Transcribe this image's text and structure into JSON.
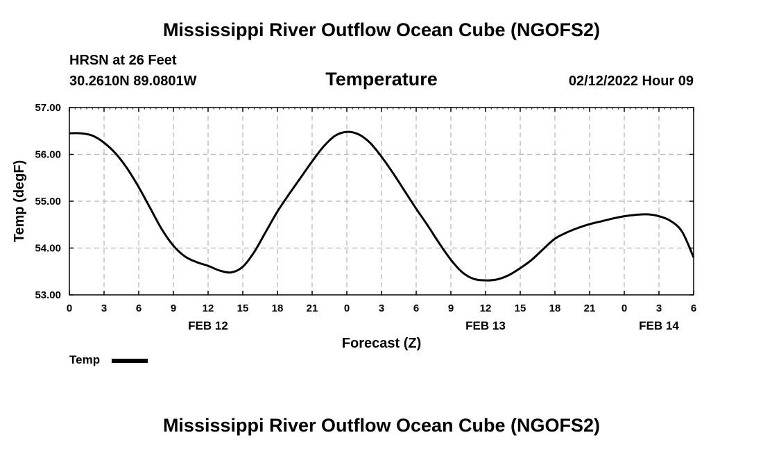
{
  "header": {
    "main_title": "Mississippi River Outflow Ocean Cube (NGOFS2)",
    "station": "HRSN at 26 Feet",
    "coords": "30.2610N  89.0801W",
    "datetime": "02/12/2022 Hour 09"
  },
  "footer": {
    "title": "Mississippi River Outflow Ocean Cube (NGOFS2)"
  },
  "chart_data": {
    "type": "line",
    "title": "Temperature",
    "xlabel": "Forecast (Z)",
    "ylabel": "Temp (degF)",
    "xlim": [
      0,
      54
    ],
    "ylim": [
      53,
      57
    ],
    "y_ticks": [
      "53.00",
      "54.00",
      "55.00",
      "56.00",
      "57.00"
    ],
    "y_tick_values": [
      53,
      54,
      55,
      56,
      57
    ],
    "x_ticks": [
      "0",
      "3",
      "6",
      "9",
      "12",
      "15",
      "18",
      "21",
      "0",
      "3",
      "6",
      "9",
      "12",
      "15",
      "18",
      "21",
      "0",
      "3",
      "6"
    ],
    "x_tick_values": [
      0,
      3,
      6,
      9,
      12,
      15,
      18,
      21,
      24,
      27,
      30,
      33,
      36,
      39,
      42,
      45,
      48,
      51,
      54
    ],
    "date_labels": [
      {
        "text": "FEB 12",
        "x": 12
      },
      {
        "text": "FEB 13",
        "x": 36
      },
      {
        "text": "FEB 14",
        "x": 51
      }
    ],
    "grid": true,
    "series": [
      {
        "name": "Temp",
        "color": "#000000",
        "x": [
          0,
          1,
          2,
          3,
          4,
          5,
          6,
          7,
          8,
          9,
          10,
          11,
          12,
          13,
          14,
          15,
          16,
          17,
          18,
          19,
          20,
          21,
          22,
          23,
          24,
          25,
          26,
          27,
          28,
          29,
          30,
          31,
          32,
          33,
          34,
          35,
          36,
          37,
          38,
          39,
          40,
          41,
          42,
          43,
          44,
          45,
          46,
          47,
          48,
          49,
          50,
          51,
          52,
          53,
          54
        ],
        "values": [
          56.45,
          56.45,
          56.4,
          56.25,
          56.02,
          55.7,
          55.3,
          54.85,
          54.4,
          54.05,
          53.82,
          53.7,
          53.62,
          53.52,
          53.48,
          53.6,
          53.92,
          54.35,
          54.78,
          55.15,
          55.5,
          55.85,
          56.17,
          56.4,
          56.48,
          56.43,
          56.25,
          55.95,
          55.6,
          55.22,
          54.84,
          54.48,
          54.1,
          53.75,
          53.48,
          53.34,
          53.31,
          53.33,
          53.42,
          53.57,
          53.75,
          53.98,
          54.2,
          54.33,
          54.43,
          54.51,
          54.57,
          54.63,
          54.68,
          54.71,
          54.72,
          54.68,
          54.58,
          54.35,
          53.8
        ]
      }
    ],
    "legend": {
      "label": "Temp",
      "placement": "bottom-left"
    }
  }
}
